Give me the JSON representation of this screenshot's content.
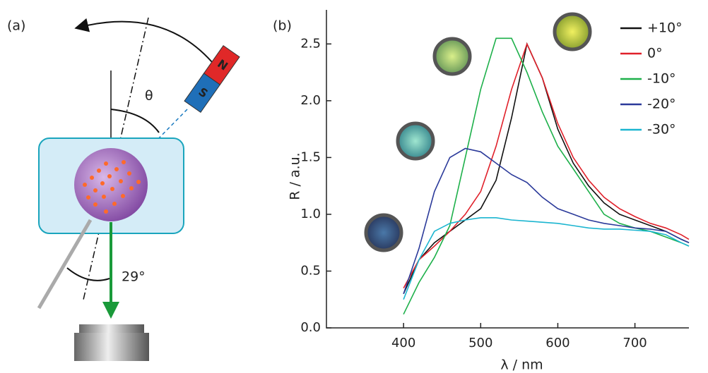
{
  "panel_a": {
    "label": "(a)",
    "magnet_north": "N",
    "magnet_south": "S",
    "tilt_angle": "θ",
    "incidence_angle": "29°"
  },
  "chart_data": {
    "type": "line",
    "panel_label": "(b)",
    "x_label": "λ / nm",
    "y_label": "R / a.u.",
    "xlim": [
      300,
      770
    ],
    "ylim": [
      0,
      2.8
    ],
    "xticks": [
      400,
      500,
      600,
      700
    ],
    "yticks": [
      {
        "value": 0,
        "label": "0.0"
      },
      0.5,
      {
        "value": 1,
        "label": "1.0"
      },
      1.5,
      {
        "value": 2,
        "label": "2.0"
      },
      2.5
    ],
    "legend": "upper right",
    "x": [
      400,
      420,
      440,
      460,
      480,
      500,
      520,
      540,
      560,
      580,
      600,
      620,
      640,
      660,
      680,
      700,
      720,
      740,
      760,
      770
    ],
    "series": [
      {
        "name": "+10°",
        "color": "#111111",
        "values": [
          0.3,
          0.6,
          0.75,
          0.85,
          0.95,
          1.05,
          1.3,
          1.85,
          2.5,
          2.2,
          1.75,
          1.45,
          1.25,
          1.1,
          1.0,
          0.95,
          0.9,
          0.85,
          0.78,
          0.75
        ]
      },
      {
        "name": "0°",
        "color": "#e0202a",
        "values": [
          0.35,
          0.6,
          0.72,
          0.85,
          1.0,
          1.2,
          1.6,
          2.1,
          2.5,
          2.2,
          1.8,
          1.5,
          1.3,
          1.15,
          1.05,
          0.98,
          0.92,
          0.88,
          0.82,
          0.78
        ]
      },
      {
        "name": "-10°",
        "color": "#1db04a",
        "values": [
          0.12,
          0.4,
          0.62,
          0.9,
          1.5,
          2.1,
          2.55,
          2.55,
          2.25,
          1.9,
          1.6,
          1.4,
          1.2,
          1.0,
          0.92,
          0.88,
          0.85,
          0.8,
          0.75,
          0.72
        ]
      },
      {
        "name": "-20°",
        "color": "#2b3a9a",
        "values": [
          0.3,
          0.7,
          1.2,
          1.5,
          1.58,
          1.55,
          1.45,
          1.35,
          1.28,
          1.15,
          1.05,
          1.0,
          0.95,
          0.92,
          0.9,
          0.88,
          0.87,
          0.85,
          0.78,
          0.75
        ]
      },
      {
        "name": "-30°",
        "color": "#1bb5d0",
        "values": [
          0.25,
          0.6,
          0.85,
          0.92,
          0.95,
          0.97,
          0.97,
          0.95,
          0.94,
          0.93,
          0.92,
          0.9,
          0.88,
          0.87,
          0.87,
          0.86,
          0.85,
          0.82,
          0.75,
          0.72
        ]
      }
    ]
  }
}
